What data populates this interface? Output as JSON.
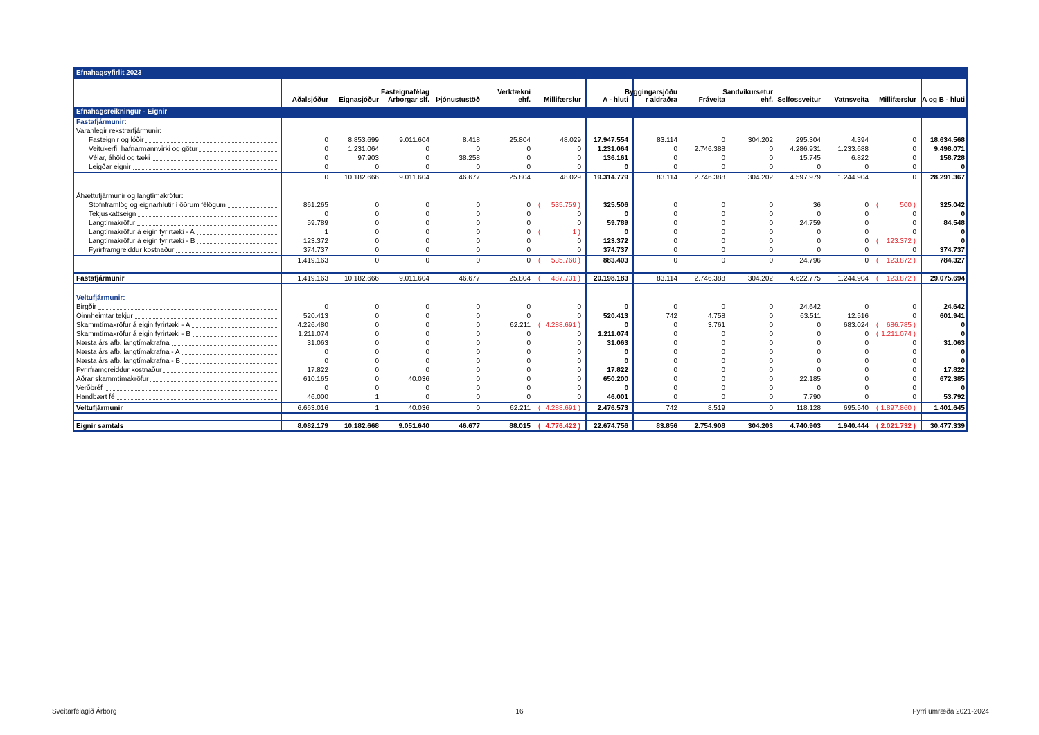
{
  "colors": {
    "navy": "#10398e",
    "red": "#e51e25"
  },
  "title_bar": "Efnahagsyfirlit 2023",
  "section_bar": "Efnahagsreikningur - Eignir",
  "column_headers": [
    "Aðalsjóður",
    "Eignasjóður",
    "Fasteignafélag\nÁrborgar slf.",
    "Þjónustustöð",
    "Verktækni ehf.",
    "Millifærslur",
    "A - hluti",
    "Byggingarsjóðu\nr aldraðra",
    "Fráveita",
    "Sandvíkursetur\nehf.",
    "Selfossveitur",
    "Vatnsveita",
    "Millifærslur",
    "A og B - hluti"
  ],
  "rows": [
    {
      "t": "sec",
      "label": "Fastafjármunir:"
    },
    {
      "t": "sub",
      "label": "Varanlegir rekstrarfjármunir:"
    },
    {
      "t": "item",
      "ind": 1,
      "label": "Fasteignir og lóðir",
      "v": [
        "0",
        "8.853.699",
        "9.011.604",
        "8.418",
        "25.804",
        "48.029",
        "17.947.554",
        "83.114",
        "0",
        "304.202",
        "295.304",
        "4.394",
        "0",
        "18.634.568"
      ]
    },
    {
      "t": "item",
      "ind": 1,
      "label": "Veitukerfi, hafnarmannvirki og götur",
      "v": [
        "0",
        "1.231.064",
        "0",
        "0",
        "0",
        "0",
        "1.231.064",
        "0",
        "2.746.388",
        "0",
        "4.286.931",
        "1.233.688",
        "0",
        "9.498.071"
      ]
    },
    {
      "t": "item",
      "ind": 1,
      "label": "Vélar, áhöld og tæki",
      "v": [
        "0",
        "97.903",
        "0",
        "38.258",
        "0",
        "0",
        "136.161",
        "0",
        "0",
        "0",
        "15.745",
        "6.822",
        "0",
        "158.728"
      ]
    },
    {
      "t": "item",
      "ind": 1,
      "label": "Leigðar eignir",
      "v": [
        "0",
        "0",
        "0",
        "0",
        "0",
        "0",
        "0",
        "0",
        "0",
        "0",
        "0",
        "0",
        "0",
        "0"
      ]
    },
    {
      "t": "subtotal",
      "label": "",
      "v": [
        "0",
        "10.182.666",
        "9.011.604",
        "46.677",
        "25.804",
        "48.029",
        "19.314.779",
        "83.114",
        "2.746.388",
        "304.202",
        "4.597.979",
        "1.244.904",
        "0",
        "28.291.367"
      ]
    },
    {
      "t": "blank",
      "h": 14
    },
    {
      "t": "sub",
      "label": "Áhættufjármunir og langtímakröfur:"
    },
    {
      "t": "item",
      "ind": 1,
      "label": "Stofnframlög og eignarhlutir í öðrum félögum",
      "v": [
        "861.265",
        "0",
        "0",
        "0",
        "0",
        "(535.759)",
        "325.506",
        "0",
        "0",
        "0",
        "36",
        "0",
        "(500)",
        "325.042"
      ]
    },
    {
      "t": "item",
      "ind": 1,
      "label": "Tekjuskattseign",
      "v": [
        "0",
        "0",
        "0",
        "0",
        "0",
        "0",
        "0",
        "0",
        "0",
        "0",
        "0",
        "0",
        "0",
        "0"
      ]
    },
    {
      "t": "item",
      "ind": 1,
      "label": "Langtímakröfur",
      "v": [
        "59.789",
        "0",
        "0",
        "0",
        "0",
        "0",
        "59.789",
        "0",
        "0",
        "0",
        "24.759",
        "0",
        "0",
        "84.548"
      ]
    },
    {
      "t": "item",
      "ind": 1,
      "label": "Langtímakröfur á eigin fyrirtæki - A",
      "v": [
        "1",
        "0",
        "0",
        "0",
        "0",
        "(1)",
        "0",
        "0",
        "0",
        "0",
        "0",
        "0",
        "0",
        "0"
      ]
    },
    {
      "t": "item",
      "ind": 1,
      "label": "Langtímakröfur á eigin fyrirtæki - B",
      "v": [
        "123.372",
        "0",
        "0",
        "0",
        "0",
        "0",
        "123.372",
        "0",
        "0",
        "0",
        "0",
        "0",
        "(123.372)",
        "0"
      ]
    },
    {
      "t": "item",
      "ind": 1,
      "label": "Fyrirframgreiddur kostnaður",
      "v": [
        "374.737",
        "0",
        "0",
        "0",
        "0",
        "0",
        "374.737",
        "0",
        "0",
        "0",
        "0",
        "0",
        "0",
        "374.737"
      ]
    },
    {
      "t": "subtotal",
      "label": "",
      "v": [
        "1.419.163",
        "0",
        "0",
        "0",
        "0",
        "(535.760)",
        "883.403",
        "0",
        "0",
        "0",
        "24.796",
        "0",
        "(123.872)",
        "784.327"
      ]
    },
    {
      "t": "blank",
      "h": 10
    },
    {
      "t": "total",
      "label": "Fastafjármunir",
      "v": [
        "1.419.163",
        "10.182.666",
        "9.011.604",
        "46.677",
        "25.804",
        "(487.731)",
        "20.198.183",
        "83.114",
        "2.746.388",
        "304.202",
        "4.622.775",
        "1.244.904",
        "(123.872)",
        "29.075.694"
      ]
    },
    {
      "t": "blank",
      "h": 14
    },
    {
      "t": "sec",
      "label": "Veltufjármunir:"
    },
    {
      "t": "item",
      "ind": 0,
      "label": "Birgðir",
      "v": [
        "0",
        "0",
        "0",
        "0",
        "0",
        "0",
        "0",
        "0",
        "0",
        "0",
        "24.642",
        "0",
        "0",
        "24.642"
      ]
    },
    {
      "t": "item",
      "ind": 0,
      "label": "Óinnheimtar tekjur",
      "v": [
        "520.413",
        "0",
        "0",
        "0",
        "0",
        "0",
        "520.413",
        "742",
        "4.758",
        "0",
        "63.511",
        "12.516",
        "0",
        "601.941"
      ]
    },
    {
      "t": "item",
      "ind": 0,
      "label": "Skammtímakröfur á eigin fyrirtæki - A",
      "v": [
        "4.226.480",
        "0",
        "0",
        "0",
        "62.211",
        "(4.288.691)",
        "0",
        "0",
        "3.761",
        "0",
        "0",
        "683.024",
        "(686.785)",
        "0"
      ]
    },
    {
      "t": "item",
      "ind": 0,
      "label": "Skammtímakröfur á eigin fyrirtæki - B",
      "v": [
        "1.211.074",
        "0",
        "0",
        "0",
        "0",
        "0",
        "1.211.074",
        "0",
        "0",
        "0",
        "0",
        "0",
        "(1.211.074)",
        "0"
      ]
    },
    {
      "t": "item",
      "ind": 0,
      "label": "Næsta árs afb. langtímakrafna",
      "v": [
        "31.063",
        "0",
        "0",
        "0",
        "0",
        "0",
        "31.063",
        "0",
        "0",
        "0",
        "0",
        "0",
        "0",
        "31.063"
      ]
    },
    {
      "t": "item",
      "ind": 0,
      "label": "Næsta árs afb. langtímakrafna - A",
      "v": [
        "0",
        "0",
        "0",
        "0",
        "0",
        "0",
        "0",
        "0",
        "0",
        "0",
        "0",
        "0",
        "0",
        "0"
      ]
    },
    {
      "t": "item",
      "ind": 0,
      "label": "Næsta árs afb. langtímakrafna - B",
      "v": [
        "0",
        "0",
        "0",
        "0",
        "0",
        "0",
        "0",
        "0",
        "0",
        "0",
        "0",
        "0",
        "0",
        "0"
      ]
    },
    {
      "t": "item",
      "ind": 0,
      "label": "Fyrirframgreiddur kostnaður",
      "v": [
        "17.822",
        "0",
        "0",
        "0",
        "0",
        "0",
        "17.822",
        "0",
        "0",
        "0",
        "0",
        "0",
        "0",
        "17.822"
      ]
    },
    {
      "t": "item",
      "ind": 0,
      "label": "Aðrar skammtímakröfur",
      "v": [
        "610.165",
        "0",
        "40.036",
        "0",
        "0",
        "0",
        "650.200",
        "0",
        "0",
        "0",
        "22.185",
        "0",
        "0",
        "672.385"
      ]
    },
    {
      "t": "item",
      "ind": 0,
      "label": "Verðbréf",
      "v": [
        "0",
        "0",
        "0",
        "0",
        "0",
        "0",
        "0",
        "0",
        "0",
        "0",
        "0",
        "0",
        "0",
        "0"
      ]
    },
    {
      "t": "item",
      "ind": 0,
      "label": "Handbært fé",
      "v": [
        "46.000",
        "1",
        "0",
        "0",
        "0",
        "0",
        "46.001",
        "0",
        "0",
        "0",
        "7.790",
        "0",
        "0",
        "53.792"
      ]
    },
    {
      "t": "total",
      "label": "Veltufjármunir",
      "v": [
        "6.663.016",
        "1",
        "40.036",
        "0",
        "62.211",
        "(4.288.691)",
        "2.476.573",
        "742",
        "8.519",
        "0",
        "118.128",
        "695.540",
        "(1.897.860)",
        "1.401.645"
      ]
    },
    {
      "t": "blank",
      "h": 9
    },
    {
      "t": "grand",
      "label": "Eignir samtals",
      "v": [
        "8.082.179",
        "10.182.668",
        "9.051.640",
        "46.677",
        "88.015",
        "(4.776.422)",
        "22.674.756",
        "83.856",
        "2.754.908",
        "304.203",
        "4.740.903",
        "1.940.444",
        "(2.021.732)",
        "30.477.339"
      ]
    }
  ],
  "footer": {
    "left": "Sveitarfélagið Árborg",
    "page_number": "16",
    "right": "Fyrri umræða 2021-2024"
  }
}
